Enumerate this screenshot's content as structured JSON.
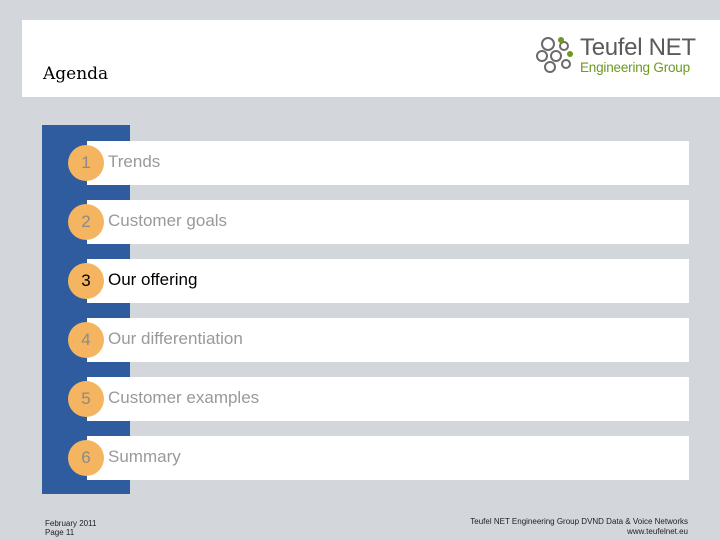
{
  "header": {
    "title": "Agenda",
    "logo": {
      "name_line": "Teufel NET",
      "tag_line": "Engineering Group",
      "name_color": "#5a5a5a",
      "tag_color": "#6b9a1f"
    }
  },
  "agenda": {
    "accent_color": "#2e5c9e",
    "circle_color": "#f5b45f",
    "active_index": 2,
    "items": [
      {
        "number": "1",
        "label": "Trends"
      },
      {
        "number": "2",
        "label": "Customer goals"
      },
      {
        "number": "3",
        "label": "Our offering"
      },
      {
        "number": "4",
        "label": "Our differentiation"
      },
      {
        "number": "5",
        "label": "Customer examples"
      },
      {
        "number": "6",
        "label": "Summary"
      }
    ]
  },
  "footer": {
    "date": "February 2011",
    "page": "Page 11",
    "company_line": "Teufel NET Engineering Group  DVND Data & Voice Networks",
    "url": "www.teufelnet.eu"
  }
}
